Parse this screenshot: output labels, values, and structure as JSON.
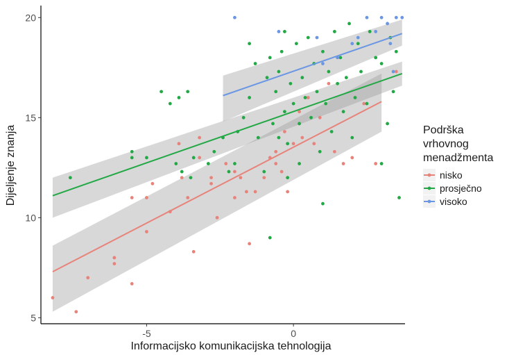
{
  "chart_data": {
    "type": "scatter",
    "xlabel": "Informacijsko komunikacijska tehnologija",
    "ylabel": "Dijeljenje znanja",
    "xlim": [
      -8.6,
      3.8
    ],
    "ylim": [
      4.7,
      20.6
    ],
    "x_ticks": [
      -5,
      0
    ],
    "y_ticks": [
      5,
      10,
      15,
      20
    ],
    "grid": false,
    "legend": {
      "title": [
        "Podrška",
        "vrhovnog",
        "menadžmenta"
      ],
      "position": "right"
    },
    "series": [
      {
        "name": "nisko",
        "color": "#E7837A",
        "points": [
          [
            -8.2,
            6.0
          ],
          [
            -7.4,
            5.3
          ],
          [
            -7.0,
            7.0
          ],
          [
            -6.1,
            7.7
          ],
          [
            -6.1,
            8.0
          ],
          [
            -5.5,
            6.7
          ],
          [
            -5.5,
            11.0
          ],
          [
            -5.0,
            11.0
          ],
          [
            -5.0,
            9.3
          ],
          [
            -4.8,
            11.7
          ],
          [
            -4.2,
            10.3
          ],
          [
            -3.9,
            13.7
          ],
          [
            -3.8,
            12.0
          ],
          [
            -3.6,
            11.0
          ],
          [
            -3.4,
            8.3
          ],
          [
            -3.2,
            14.0
          ],
          [
            -3.2,
            13.0
          ],
          [
            -2.8,
            11.7
          ],
          [
            -2.8,
            12.0
          ],
          [
            -2.6,
            10.0
          ],
          [
            -2.3,
            12.7
          ],
          [
            -2.0,
            12.3
          ],
          [
            -2.0,
            11.0
          ],
          [
            -1.8,
            12.0
          ],
          [
            -1.6,
            11.3
          ],
          [
            -1.5,
            8.7
          ],
          [
            -1.3,
            11.3
          ],
          [
            -1.0,
            12.0
          ],
          [
            -0.8,
            13.0
          ],
          [
            -0.6,
            12.7
          ],
          [
            -0.6,
            13.3
          ],
          [
            -0.4,
            12.3
          ],
          [
            -0.3,
            14.3
          ],
          [
            -0.2,
            11.3
          ],
          [
            0.0,
            13.7
          ],
          [
            0.2,
            15.3
          ],
          [
            0.3,
            14.0
          ],
          [
            0.5,
            16.0
          ],
          [
            0.7,
            13.7
          ],
          [
            0.9,
            15.0
          ],
          [
            1.2,
            16.7
          ],
          [
            1.4,
            13.3
          ],
          [
            1.7,
            12.7
          ],
          [
            2.0,
            13.0
          ],
          [
            2.4,
            15.7
          ],
          [
            2.8,
            12.7
          ],
          [
            3.5,
            17.3
          ]
        ],
        "fit": {
          "x": [
            -8.2,
            3.0
          ],
          "y": [
            7.3,
            15.8
          ],
          "se_low": [
            5.3,
            14.3
          ],
          "se_high": [
            8.6,
            17.2
          ]
        }
      },
      {
        "name": "prosječno",
        "color": "#22A845",
        "points": [
          [
            -7.6,
            12.0
          ],
          [
            -5.5,
            13.3
          ],
          [
            -5.5,
            13.0
          ],
          [
            -5.0,
            13.0
          ],
          [
            -4.5,
            16.3
          ],
          [
            -4.2,
            15.7
          ],
          [
            -4.0,
            12.7
          ],
          [
            -3.9,
            16.0
          ],
          [
            -3.8,
            12.3
          ],
          [
            -3.6,
            16.3
          ],
          [
            -3.5,
            12.0
          ],
          [
            -3.4,
            13.0
          ],
          [
            -2.9,
            12.7
          ],
          [
            -2.7,
            13.3
          ],
          [
            -2.4,
            14.0
          ],
          [
            -2.2,
            12.3
          ],
          [
            -2.0,
            12.7
          ],
          [
            -1.9,
            14.3
          ],
          [
            -1.7,
            15.0
          ],
          [
            -1.5,
            18.7
          ],
          [
            -1.5,
            16.0
          ],
          [
            -1.3,
            17.7
          ],
          [
            -1.2,
            14.0
          ],
          [
            -1.0,
            12.3
          ],
          [
            -0.9,
            17.0
          ],
          [
            -0.8,
            18.0
          ],
          [
            -0.8,
            9.0
          ],
          [
            -0.7,
            14.7
          ],
          [
            -0.6,
            16.3
          ],
          [
            -0.5,
            17.3
          ],
          [
            -0.5,
            14.0
          ],
          [
            -0.4,
            18.3
          ],
          [
            -0.3,
            15.3
          ],
          [
            -0.3,
            19.3
          ],
          [
            -0.2,
            12.0
          ],
          [
            -0.2,
            13.7
          ],
          [
            -0.1,
            16.7
          ],
          [
            0.0,
            15.7
          ],
          [
            0.1,
            18.7
          ],
          [
            0.2,
            14.7
          ],
          [
            0.2,
            12.7
          ],
          [
            0.3,
            17.0
          ],
          [
            0.4,
            16.0
          ],
          [
            0.5,
            19.0
          ],
          [
            0.6,
            15.0
          ],
          [
            0.7,
            17.7
          ],
          [
            0.8,
            16.3
          ],
          [
            0.9,
            13.3
          ],
          [
            1.0,
            18.3
          ],
          [
            1.0,
            10.7
          ],
          [
            1.1,
            15.7
          ],
          [
            1.2,
            17.3
          ],
          [
            1.3,
            14.3
          ],
          [
            1.4,
            19.3
          ],
          [
            1.5,
            16.7
          ],
          [
            1.6,
            18.0
          ],
          [
            1.7,
            15.3
          ],
          [
            1.8,
            17.0
          ],
          [
            1.9,
            19.7
          ],
          [
            2.0,
            14.0
          ],
          [
            2.1,
            16.0
          ],
          [
            2.2,
            18.7
          ],
          [
            2.3,
            17.3
          ],
          [
            2.5,
            15.7
          ],
          [
            2.6,
            19.3
          ],
          [
            2.8,
            18.0
          ],
          [
            3.0,
            12.7
          ],
          [
            3.0,
            17.7
          ],
          [
            3.2,
            14.7
          ],
          [
            3.3,
            19.0
          ],
          [
            3.4,
            16.3
          ],
          [
            3.5,
            18.3
          ],
          [
            3.6,
            11.0
          ]
        ],
        "fit": {
          "x": [
            -8.2,
            3.7
          ],
          "y": [
            11.1,
            17.2
          ],
          "se_low": [
            10.0,
            16.6
          ],
          "se_high": [
            12.0,
            17.8
          ]
        }
      },
      {
        "name": "visoko",
        "color": "#6A96E3",
        "points": [
          [
            -2.0,
            20.0
          ],
          [
            -0.5,
            19.3
          ],
          [
            0.8,
            19.0
          ],
          [
            1.0,
            17.7
          ],
          [
            1.5,
            18.0
          ],
          [
            2.0,
            18.7
          ],
          [
            2.2,
            19.0
          ],
          [
            2.5,
            20.0
          ],
          [
            2.8,
            19.3
          ],
          [
            3.0,
            20.0
          ],
          [
            3.2,
            19.7
          ],
          [
            3.3,
            18.7
          ],
          [
            3.5,
            20.0
          ],
          [
            3.7,
            20.0
          ],
          [
            3.4,
            17.3
          ]
        ],
        "fit": {
          "x": [
            -2.4,
            3.7
          ],
          "y": [
            16.1,
            19.2
          ],
          "se_low": [
            14.8,
            18.6
          ],
          "se_high": [
            17.1,
            19.9
          ]
        }
      }
    ]
  }
}
